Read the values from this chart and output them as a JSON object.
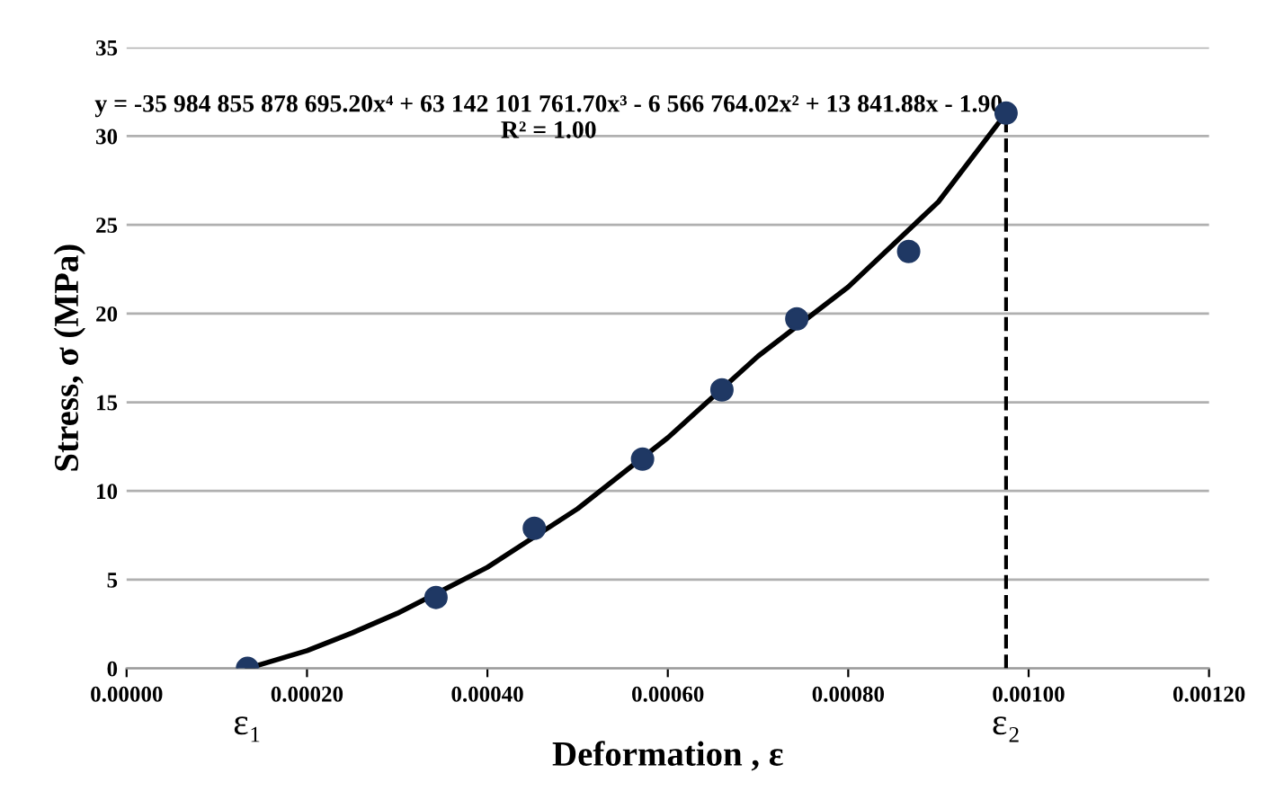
{
  "chart_data": {
    "type": "scatter",
    "xlabel": "Deformation , ε",
    "ylabel": "Stress, σ (MPa)",
    "xlim": [
      0,
      0.0012
    ],
    "xticks": [
      {
        "value": 0,
        "label": "0.00000"
      },
      {
        "value": 0.0002,
        "label": "0.00020"
      },
      {
        "value": 0.0004,
        "label": "0.00040"
      },
      {
        "value": 0.0006,
        "label": "0.00060"
      },
      {
        "value": 0.0008,
        "label": "0.00080"
      },
      {
        "value": 0.001,
        "label": "0.00100"
      },
      {
        "value": 0.0012,
        "label": "0.00120"
      }
    ],
    "ylim": [
      0,
      35
    ],
    "yticks": [
      0,
      5,
      10,
      15,
      20,
      25,
      30,
      35
    ],
    "grid": "y",
    "legend": false,
    "series": [
      {
        "type": "line",
        "color": "#000000",
        "marker": "none",
        "line_style": "solid",
        "x": [
          0.000134,
          0.0002,
          0.00025,
          0.0003,
          0.0004,
          0.0005,
          0.0006,
          0.0007,
          0.0008,
          0.0009,
          0.000975
        ],
        "values": [
          0,
          1.0,
          2.0,
          3.1,
          5.7,
          9.0,
          13.0,
          17.6,
          21.5,
          26.3,
          31.3
        ]
      },
      {
        "type": "line",
        "color": "#000000",
        "marker": "none",
        "line_style": "dashed",
        "x": [
          0.000975,
          0.000975
        ],
        "values": [
          0,
          31.3
        ]
      },
      {
        "color": "#1f3864",
        "marker": "circle",
        "x": [
          0.000134,
          0.000343,
          0.000452,
          0.000572,
          0.00066,
          0.000743,
          0.000867,
          0.000975
        ],
        "values": [
          0,
          4.0,
          7.9,
          11.8,
          15.7,
          19.7,
          23.5,
          31.3
        ]
      }
    ],
    "annotations": [
      "y = -35 984 855 878 695.20x⁴ + 63 142 101 761.70x³ - 6 566 764.02x² + 13 841.88x - 1.90\nR² = 1.00",
      {
        "text": "ε₁",
        "x": 0.000134,
        "y": 0
      },
      {
        "text": "ε₂",
        "x": 0.000975,
        "y": 0
      }
    ]
  }
}
